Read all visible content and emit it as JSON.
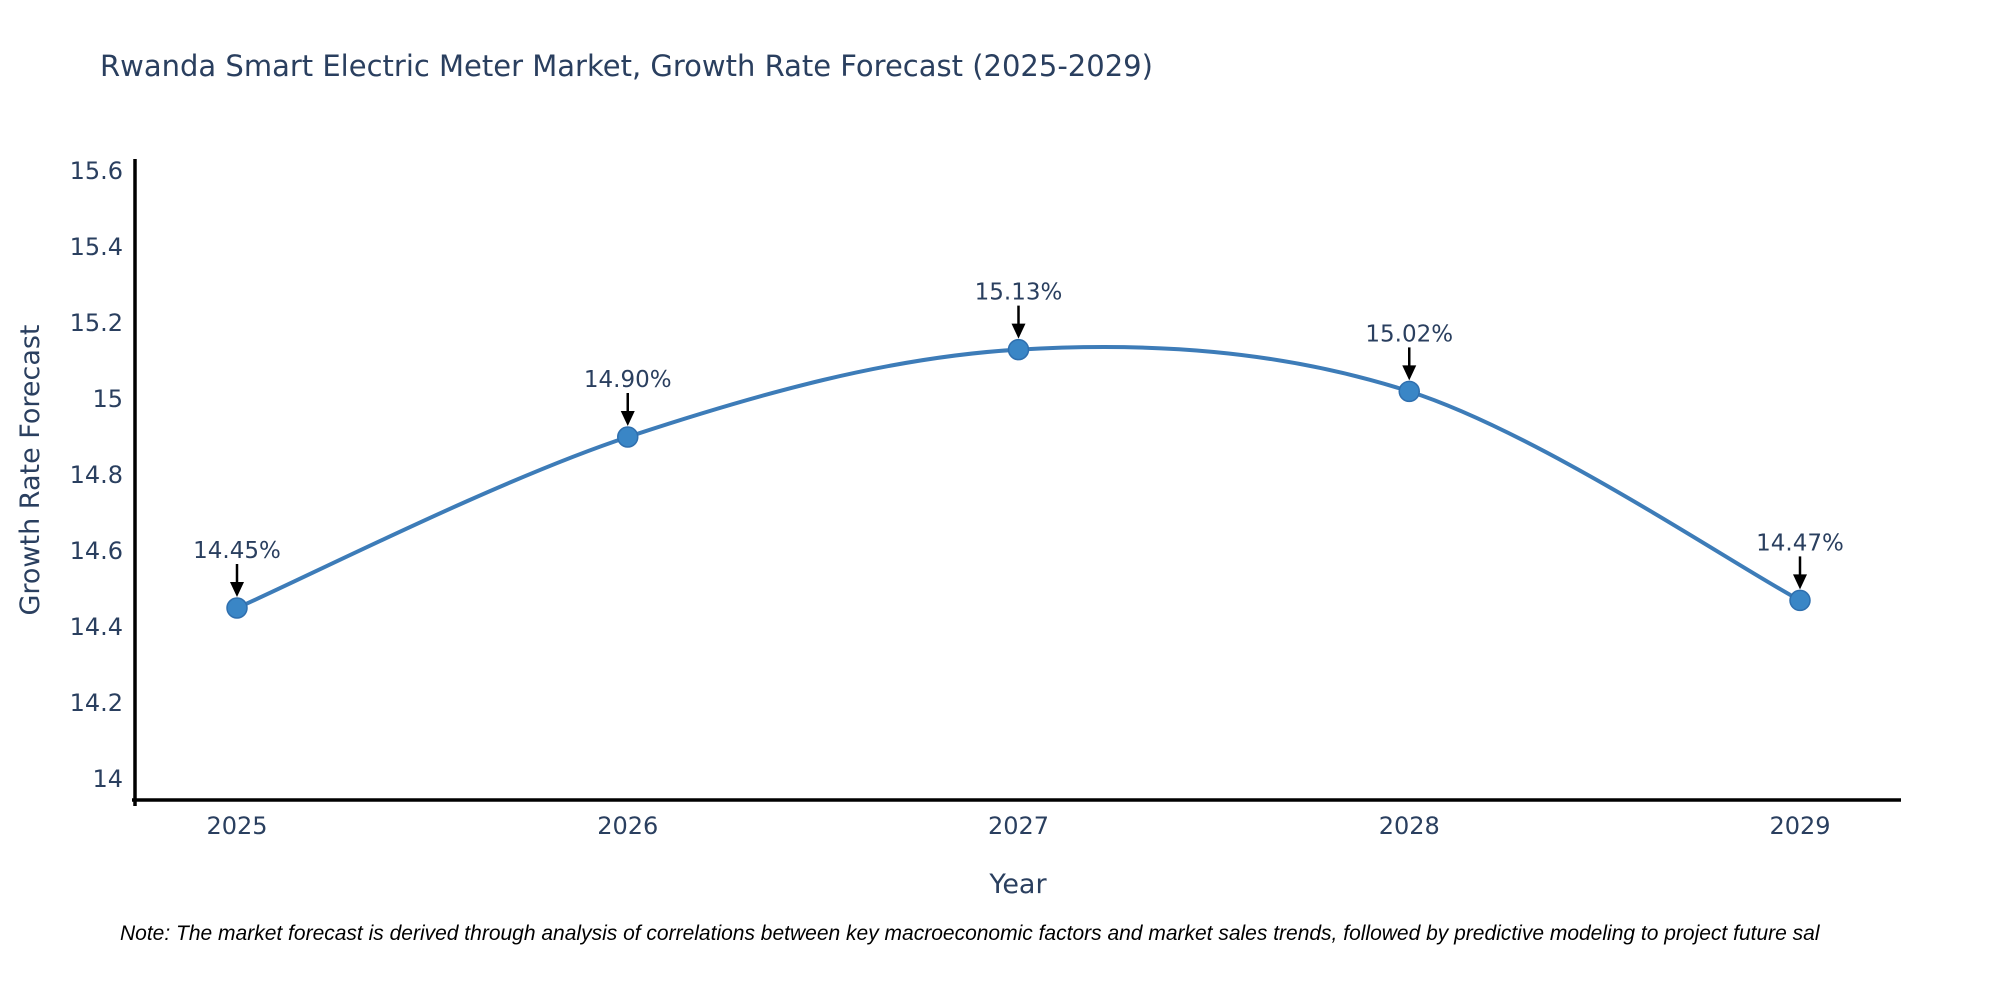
{
  "note": "Note: The market forecast is derived through analysis of correlations between key macroeconomic factors and market sales trends, followed by predictive modeling to project future sal",
  "chart_data": {
    "type": "line",
    "title": "Rwanda Smart Electric Meter Market, Growth Rate Forecast (2025-2029)",
    "xlabel": "Year",
    "ylabel": "Growth Rate Forecast",
    "categories": [
      "2025",
      "2026",
      "2027",
      "2028",
      "2029"
    ],
    "values": [
      14.45,
      14.9,
      15.13,
      15.02,
      14.47
    ],
    "point_labels": [
      "14.45%",
      "14.90%",
      "15.13%",
      "15.02%",
      "14.47%"
    ],
    "ylim": [
      14,
      15.6
    ],
    "yticks": [
      15.6,
      15.4,
      15.2,
      15,
      14.8,
      14.6,
      14.4,
      14.2,
      14
    ],
    "line_shape": "spline",
    "grid": false,
    "legend": "none",
    "marker": "circle",
    "annotation_arrows": true,
    "colors": {
      "line": "#3d7cb8",
      "marker_fill": "#3a86c6",
      "marker_edge": "#2f6fae",
      "axis_line": "#000000",
      "text": "#2a3f5f",
      "arrow": "#000000",
      "note": "#000000",
      "background": "#ffffff"
    }
  }
}
